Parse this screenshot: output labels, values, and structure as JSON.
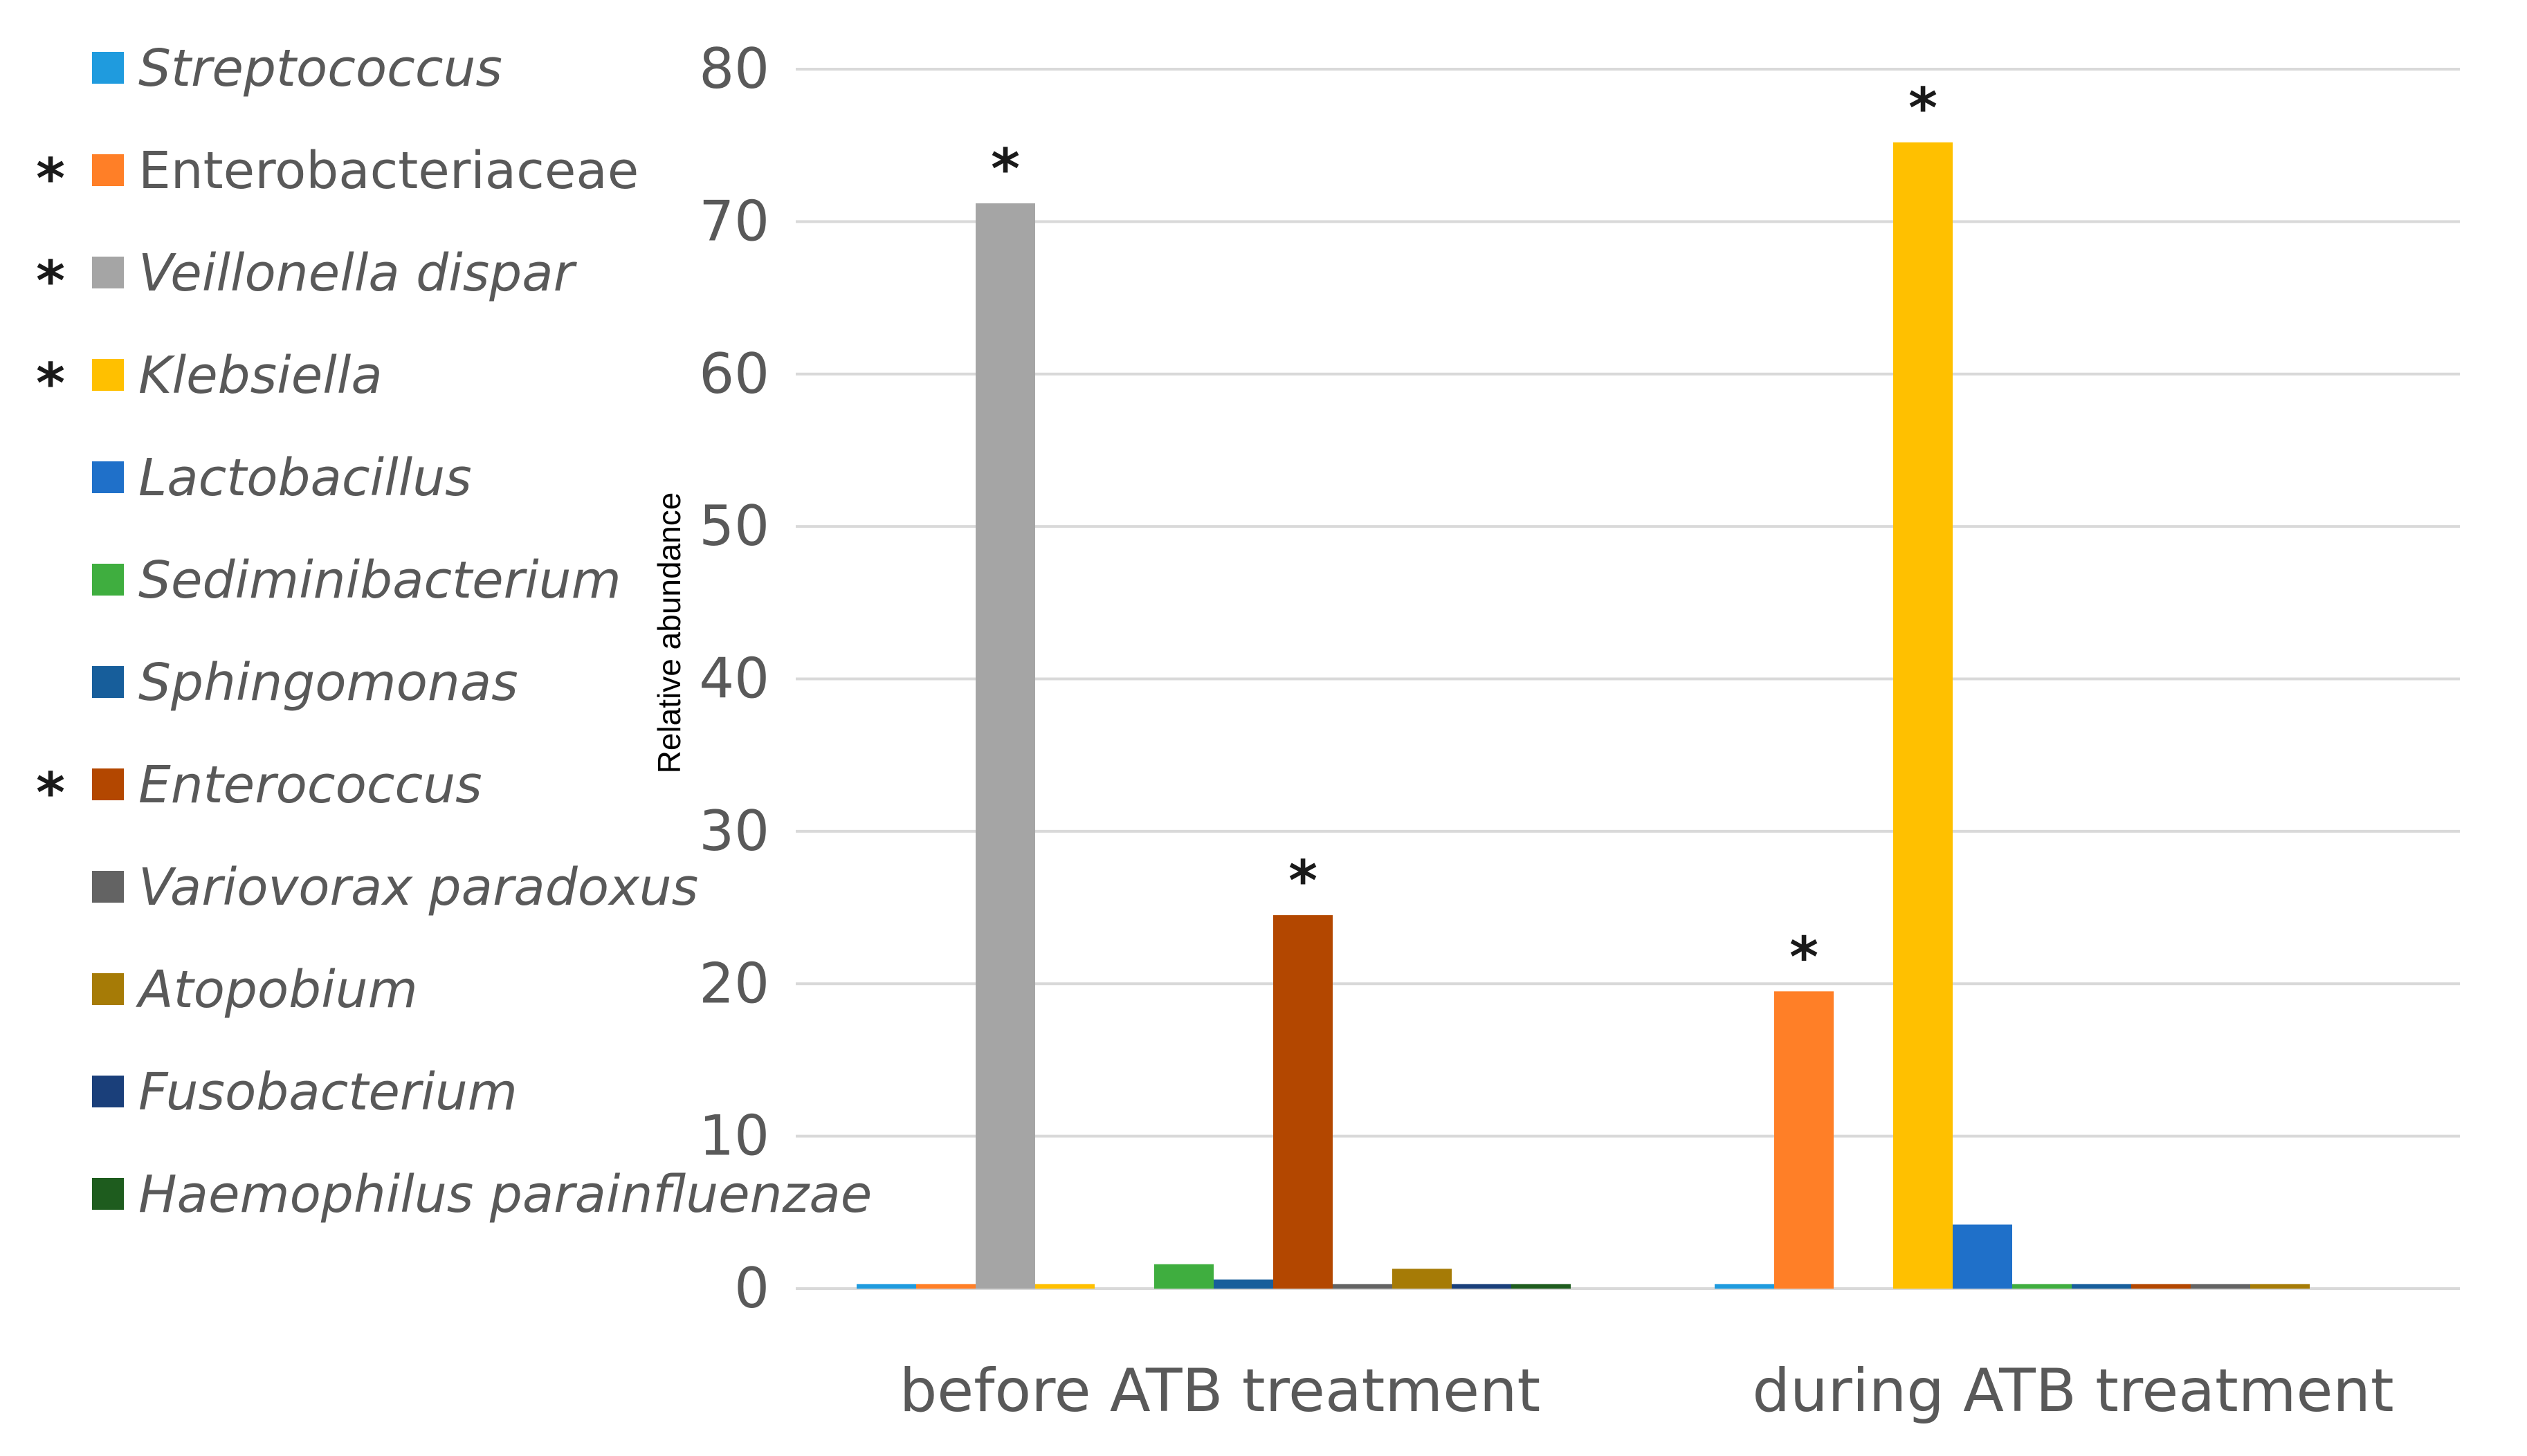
{
  "chart_data": {
    "type": "bar",
    "title": "",
    "xlabel": "",
    "ylabel": "Relative abundance",
    "ylim": [
      0,
      80
    ],
    "yticks": [
      0,
      10,
      20,
      30,
      40,
      50,
      60,
      70,
      80
    ],
    "grid": true,
    "legend_position": "left",
    "categories": [
      "before ATB treatment",
      "during ATB treatment"
    ],
    "significance_marker": "*",
    "series": [
      {
        "name": "Streptococcus",
        "italic": true,
        "color": "#1f9bde",
        "values": [
          0.3,
          0.3
        ],
        "significant": [
          false,
          false
        ],
        "legend_star": false
      },
      {
        "name": "Enterobacteriaceae",
        "italic": false,
        "color": "#ff7f27",
        "values": [
          0.3,
          19.5
        ],
        "significant": [
          false,
          true
        ],
        "legend_star": true
      },
      {
        "name": "Veillonella dispar",
        "italic": true,
        "color": "#a5a5a5",
        "values": [
          71.2,
          0
        ],
        "significant": [
          true,
          false
        ],
        "legend_star": true
      },
      {
        "name": "Klebsiella",
        "italic": true,
        "color": "#ffc000",
        "values": [
          0.3,
          75.2
        ],
        "significant": [
          false,
          true
        ],
        "legend_star": true
      },
      {
        "name": "Lactobacillus",
        "italic": true,
        "color": "#1f70c9",
        "values": [
          0,
          4.2
        ],
        "significant": [
          false,
          false
        ],
        "legend_star": false
      },
      {
        "name": "Sediminibacterium",
        "italic": true,
        "color": "#3fae3f",
        "values": [
          1.6,
          0.3
        ],
        "significant": [
          false,
          false
        ],
        "legend_star": false
      },
      {
        "name": "Sphingomonas",
        "italic": true,
        "color": "#175e9b",
        "values": [
          0.6,
          0.3
        ],
        "significant": [
          false,
          false
        ],
        "legend_star": false
      },
      {
        "name": "Enterococcus",
        "italic": true,
        "color": "#b34700",
        "values": [
          24.5,
          0.3
        ],
        "significant": [
          true,
          false
        ],
        "legend_star": true
      },
      {
        "name": "Variovorax paradoxus",
        "italic": true,
        "color": "#636363",
        "values": [
          0.3,
          0.3
        ],
        "significant": [
          false,
          false
        ],
        "legend_star": false
      },
      {
        "name": "Atopobium",
        "italic": true,
        "color": "#a67b06",
        "values": [
          1.3,
          0.3
        ],
        "significant": [
          false,
          false
        ],
        "legend_star": false
      },
      {
        "name": "Fusobacterium",
        "italic": true,
        "color": "#1a3f7a",
        "values": [
          0.3,
          0
        ],
        "significant": [
          false,
          false
        ],
        "legend_star": false
      },
      {
        "name": "Haemophilus parainfluenzae",
        "italic": true,
        "color": "#1e5c1e",
        "values": [
          0.3,
          0
        ],
        "significant": [
          false,
          false
        ],
        "legend_star": false
      }
    ]
  }
}
